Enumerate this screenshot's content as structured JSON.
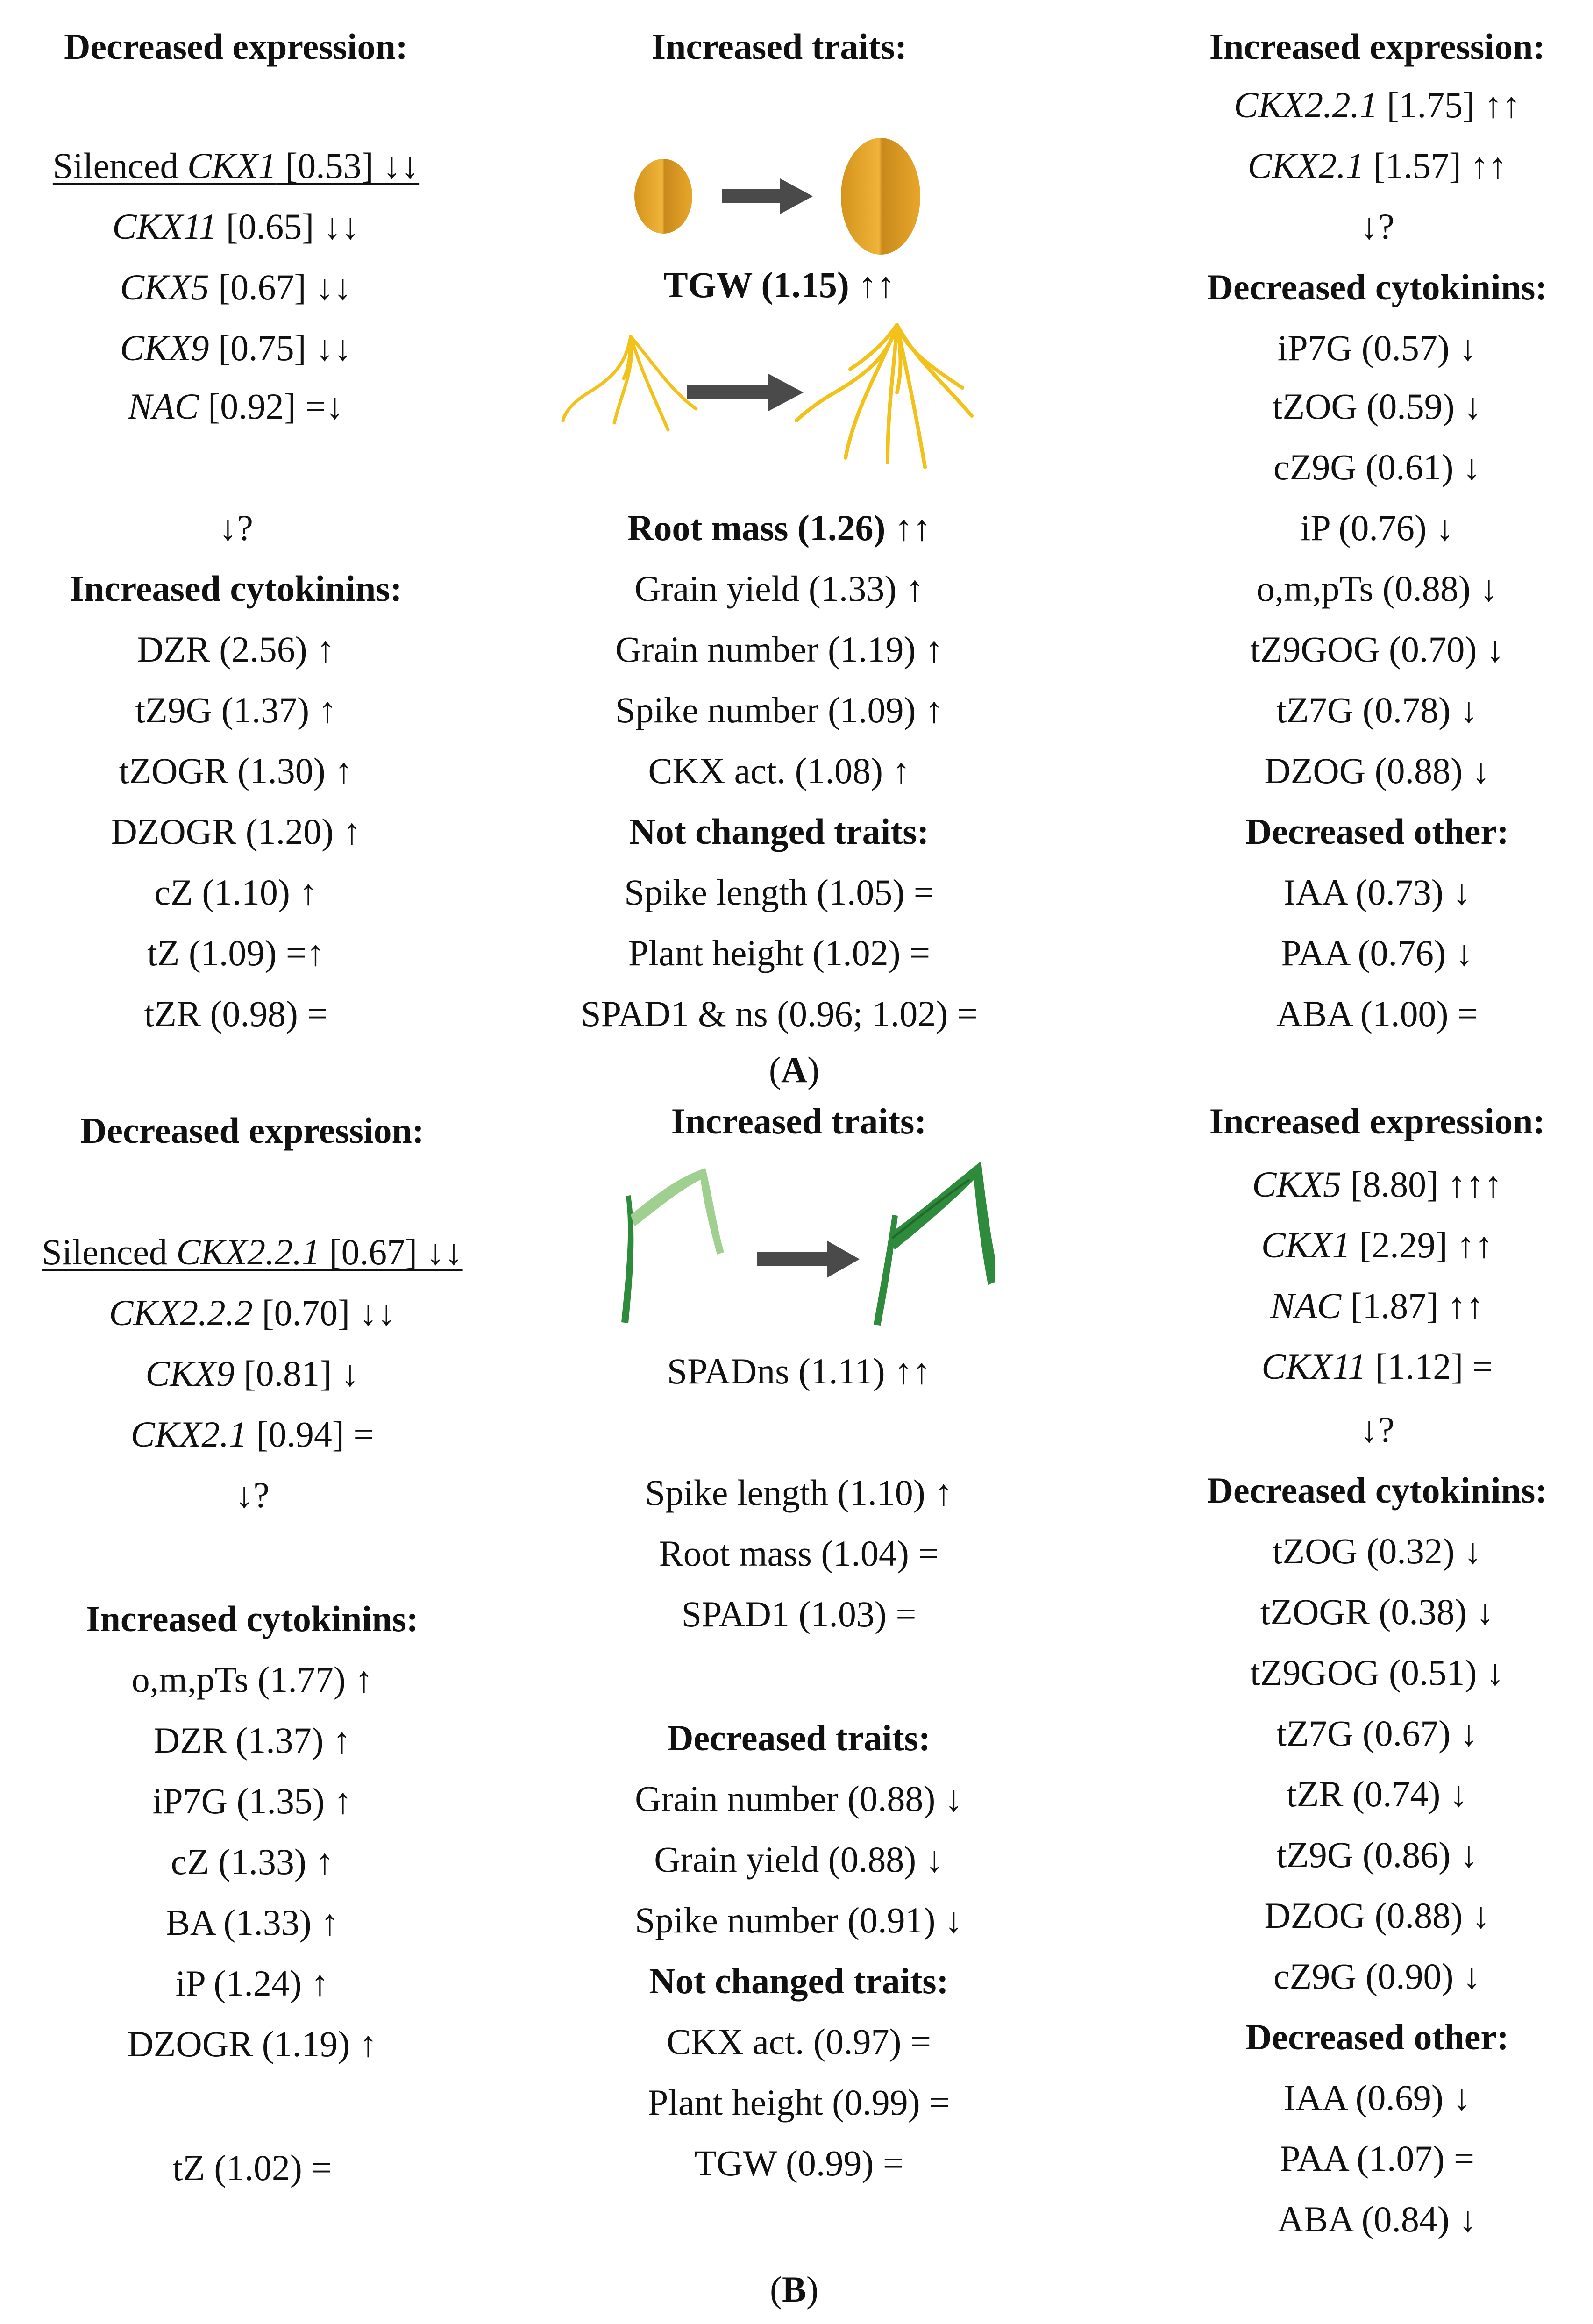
{
  "panel_a": {
    "left": {
      "heading": "Decreased expression:",
      "silenced_prefix": "Silenced ",
      "silenced_gene": "CKX1",
      "silenced_value": " [0.53] ↓↓",
      "genes": [
        {
          "name": "CKX11",
          "value": " [0.65] ↓↓"
        },
        {
          "name": "CKX5",
          "value": " [0.67] ↓↓"
        },
        {
          "name": "CKX9",
          "value": " [0.75] ↓↓"
        },
        {
          "name": "NAC",
          "value": " [0.92] =↓"
        }
      ],
      "link": "↓?",
      "cytokinin_heading": "Increased cytokinins:",
      "cytokinins": [
        "DZR (2.56) ↑",
        "tZ9G (1.37) ↑",
        "tZOGR (1.30) ↑",
        "DZOGR (1.20) ↑",
        "cZ (1.10) ↑",
        "tZ (1.09) =↑",
        "tZR (0.98) ="
      ]
    },
    "middle": {
      "heading": "Increased traits:",
      "tgw": "TGW (1.15)",
      "tgw_arrows": " ↑↑",
      "root_mass": "Root mass (1.26)",
      "root_mass_arrows": " ↑↑",
      "traits": [
        "Grain yield (1.33) ↑",
        "Grain number (1.19) ↑",
        "Spike number (1.09) ↑",
        "CKX act. (1.08) ↑"
      ],
      "not_changed_heading": "Not changed traits:",
      "not_changed": [
        "Spike length (1.05) =",
        "Plant height (1.02) =",
        "SPAD1 & ns (0.96; 1.02) ="
      ]
    },
    "right": {
      "heading": "Increased expression:",
      "genes": [
        {
          "name": "CKX2.2.1",
          "value": " [1.75] ↑↑"
        },
        {
          "name": "CKX2.1",
          "value": " [1.57] ↑↑"
        }
      ],
      "link": "↓?",
      "cytokinin_heading": "Decreased cytokinins:",
      "cytokinins": [
        "iP7G (0.57) ↓",
        "tZOG (0.59) ↓",
        "cZ9G (0.61) ↓",
        "iP (0.76) ↓",
        "o,m,pTs (0.88) ↓",
        "tZ9GOG (0.70) ↓",
        "tZ7G (0.78) ↓",
        "DZOG (0.88) ↓"
      ],
      "other_heading": "Decreased other:",
      "other": [
        "IAA (0.73) ↓",
        "PAA (0.76) ↓",
        "ABA (1.00) ="
      ]
    },
    "caption_open": "(",
    "caption_letter": "A",
    "caption_close": ")"
  },
  "panel_b": {
    "left": {
      "heading": "Decreased expression:",
      "silenced_prefix": "Silenced ",
      "silenced_gene": "CKX2.2.1",
      "silenced_value": " [0.67] ↓↓",
      "genes": [
        {
          "name": "CKX2.2.2",
          "value": " [0.70] ↓↓"
        },
        {
          "name": "CKX9",
          "value": " [0.81] ↓"
        },
        {
          "name": "CKX2.1",
          "value": " [0.94] ="
        }
      ],
      "link": "↓?",
      "cytokinin_heading": "Increased cytokinins:",
      "cytokinins": [
        "o,m,pTs (1.77) ↑",
        "DZR (1.37) ↑",
        "iP7G (1.35) ↑",
        "cZ (1.33) ↑",
        "BA (1.33) ↑",
        "iP (1.24) ↑",
        "DZOGR (1.19) ↑"
      ],
      "tz": "tZ (1.02) ="
    },
    "middle": {
      "heading": "Increased traits:",
      "spadns": "SPADns (1.11) ↑↑",
      "traits": [
        "Spike length (1.10) ↑",
        "Root mass (1.04) =",
        "SPAD1 (1.03) ="
      ],
      "decreased_heading": "Decreased traits:",
      "decreased": [
        "Grain number (0.88) ↓",
        "Grain yield (0.88) ↓",
        "Spike number (0.91) ↓"
      ],
      "not_changed_heading": "Not changed traits:",
      "not_changed": [
        "CKX act. (0.97) =",
        "Plant height (0.99) =",
        "TGW (0.99) ="
      ]
    },
    "right": {
      "heading": "Increased expression:",
      "genes": [
        {
          "name": "CKX5",
          "value": " [8.80] ↑↑↑"
        },
        {
          "name": "CKX1",
          "value": " [2.29] ↑↑"
        },
        {
          "name": "NAC",
          "value": " [1.87] ↑↑"
        },
        {
          "name": "CKX11",
          "value": " [1.12] ="
        }
      ],
      "link": "↓?",
      "cytokinin_heading": "Decreased cytokinins:",
      "cytokinins": [
        "tZOG (0.32) ↓",
        "tZOGR (0.38) ↓",
        "tZ9GOG (0.51) ↓",
        "tZ7G (0.67) ↓",
        "tZR (0.74) ↓",
        "tZ9G (0.86) ↓",
        "DZOG (0.88) ↓",
        "cZ9G (0.90) ↓"
      ],
      "other_heading": "Decreased other:",
      "other": [
        "IAA (0.69) ↓",
        "PAA (1.07) =",
        "ABA (0.84) ↓"
      ]
    },
    "caption_open": "(",
    "caption_letter": "B",
    "caption_close": ")"
  },
  "colors": {
    "grain": "#e8a72a",
    "root": "#f2c21a",
    "leaf_light": "#9fd08f",
    "leaf_dark": "#2e8b3c",
    "arrow": "#4a4a4a"
  }
}
